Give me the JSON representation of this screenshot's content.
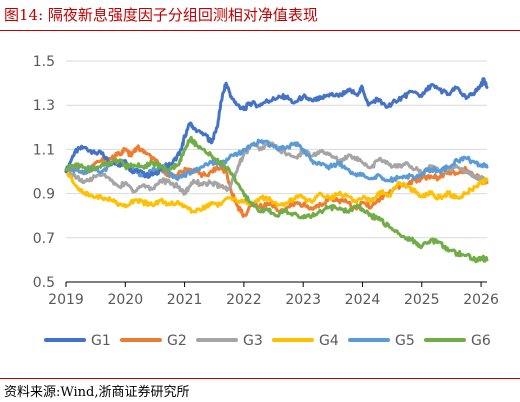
{
  "figure": {
    "title": "图14:  隔夜新息强度因子分组回测相对净值表现",
    "source": "资料来源:Wind,浙商证券研究所"
  },
  "chart_data": {
    "type": "line",
    "title": "",
    "xlabel": "",
    "ylabel": "",
    "ylim": [
      0.5,
      1.5
    ],
    "yticks": [
      0.5,
      0.7,
      0.9,
      1.1,
      1.3,
      1.5
    ],
    "ytick_labels": [
      "0.5",
      "0.7",
      "0.9",
      "1.1",
      "1.3",
      "1.5"
    ],
    "xlim": [
      2019,
      2026.1
    ],
    "xticks": [
      2019,
      2020,
      2021,
      2022,
      2023,
      2024,
      2025,
      2026
    ],
    "xtick_labels": [
      "2019",
      "2020",
      "2021",
      "2022",
      "2023",
      "2024",
      "2025",
      "2026"
    ],
    "grid": "horizontal",
    "legend": "bottom",
    "series": [
      {
        "name": "G1",
        "color": "#4472c4",
        "x": [
          2019.0,
          2019.15,
          2019.3,
          2019.45,
          2019.6,
          2019.75,
          2019.9,
          2020.0,
          2020.1,
          2020.2,
          2020.35,
          2020.5,
          2020.65,
          2020.8,
          2020.95,
          2021.0,
          2021.1,
          2021.2,
          2021.35,
          2021.45,
          2021.55,
          2021.62,
          2021.7,
          2021.8,
          2021.9,
          2022.0,
          2022.1,
          2022.25,
          2022.4,
          2022.55,
          2022.7,
          2022.85,
          2023.0,
          2023.15,
          2023.3,
          2023.45,
          2023.6,
          2023.75,
          2023.9,
          2024.0,
          2024.1,
          2024.25,
          2024.4,
          2024.55,
          2024.7,
          2024.85,
          2025.0,
          2025.15,
          2025.3,
          2025.45,
          2025.6,
          2025.75,
          2025.9,
          2026.0,
          2026.05,
          2026.1
        ],
        "values": [
          1.0,
          1.09,
          1.11,
          1.09,
          1.08,
          1.04,
          1.03,
          1.05,
          1.0,
          1.01,
          0.98,
          0.99,
          1.02,
          1.04,
          1.1,
          1.16,
          1.22,
          1.18,
          1.17,
          1.13,
          1.2,
          1.32,
          1.4,
          1.33,
          1.3,
          1.28,
          1.31,
          1.3,
          1.32,
          1.33,
          1.34,
          1.31,
          1.34,
          1.32,
          1.33,
          1.35,
          1.34,
          1.37,
          1.35,
          1.38,
          1.3,
          1.33,
          1.29,
          1.32,
          1.34,
          1.36,
          1.34,
          1.39,
          1.37,
          1.35,
          1.38,
          1.33,
          1.36,
          1.39,
          1.42,
          1.38
        ]
      },
      {
        "name": "G2",
        "color": "#ed7d31",
        "x": [
          2019.0,
          2019.15,
          2019.3,
          2019.45,
          2019.6,
          2019.75,
          2019.9,
          2020.0,
          2020.1,
          2020.2,
          2020.35,
          2020.5,
          2020.65,
          2020.8,
          2020.95,
          2021.1,
          2021.25,
          2021.4,
          2021.55,
          2021.7,
          2021.8,
          2021.9,
          2022.0,
          2022.15,
          2022.3,
          2022.45,
          2022.6,
          2022.75,
          2022.9,
          2023.0,
          2023.15,
          2023.3,
          2023.45,
          2023.6,
          2023.75,
          2023.9,
          2024.0,
          2024.15,
          2024.3,
          2024.45,
          2024.6,
          2024.75,
          2024.9,
          2025.0,
          2025.15,
          2025.3,
          2025.45,
          2025.6,
          2025.75,
          2025.9,
          2026.0,
          2026.1
        ],
        "values": [
          1.0,
          1.02,
          0.99,
          1.03,
          1.05,
          1.06,
          1.08,
          1.1,
          1.07,
          1.11,
          1.08,
          1.05,
          1.0,
          0.98,
          1.0,
          1.01,
          0.99,
          0.98,
          1.02,
          1.0,
          0.9,
          0.84,
          0.8,
          0.85,
          0.84,
          0.86,
          0.82,
          0.84,
          0.86,
          0.85,
          0.83,
          0.85,
          0.88,
          0.87,
          0.86,
          0.83,
          0.86,
          0.84,
          0.88,
          0.9,
          0.93,
          0.94,
          0.96,
          0.97,
          0.98,
          0.97,
          1.0,
          0.99,
          1.01,
          0.98,
          0.97,
          0.95
        ]
      },
      {
        "name": "G3",
        "color": "#a5a5a5",
        "x": [
          2019.0,
          2019.15,
          2019.3,
          2019.45,
          2019.6,
          2019.75,
          2019.9,
          2020.0,
          2020.15,
          2020.3,
          2020.45,
          2020.6,
          2020.75,
          2020.9,
          2021.0,
          2021.15,
          2021.3,
          2021.45,
          2021.6,
          2021.75,
          2021.9,
          2022.0,
          2022.15,
          2022.3,
          2022.45,
          2022.6,
          2022.75,
          2022.9,
          2023.0,
          2023.15,
          2023.3,
          2023.45,
          2023.6,
          2023.75,
          2023.9,
          2024.0,
          2024.15,
          2024.3,
          2024.45,
          2024.6,
          2024.75,
          2024.9,
          2025.0,
          2025.15,
          2025.3,
          2025.45,
          2025.6,
          2025.75,
          2025.9,
          2026.0,
          2026.1
        ],
        "values": [
          1.0,
          0.98,
          0.95,
          0.97,
          0.99,
          0.96,
          0.93,
          0.95,
          0.91,
          0.94,
          0.92,
          0.96,
          0.95,
          0.93,
          0.9,
          0.96,
          0.94,
          0.95,
          0.93,
          0.92,
          1.02,
          1.08,
          1.12,
          1.1,
          1.13,
          1.1,
          1.08,
          1.06,
          1.1,
          1.07,
          1.09,
          1.08,
          1.05,
          1.07,
          1.06,
          1.04,
          1.02,
          1.06,
          1.03,
          1.02,
          1.04,
          1.01,
          0.99,
          1.02,
          1.0,
          1.01,
          1.02,
          1.0,
          0.98,
          0.97,
          0.95
        ]
      },
      {
        "name": "G4",
        "color": "#ffc000",
        "x": [
          2019.0,
          2019.15,
          2019.3,
          2019.45,
          2019.6,
          2019.75,
          2019.9,
          2020.0,
          2020.15,
          2020.3,
          2020.45,
          2020.6,
          2020.75,
          2020.9,
          2021.0,
          2021.15,
          2021.3,
          2021.45,
          2021.6,
          2021.75,
          2021.9,
          2022.0,
          2022.15,
          2022.3,
          2022.45,
          2022.6,
          2022.75,
          2022.9,
          2023.0,
          2023.15,
          2023.3,
          2023.45,
          2023.6,
          2023.75,
          2023.9,
          2024.0,
          2024.15,
          2024.3,
          2024.45,
          2024.6,
          2024.75,
          2024.9,
          2025.0,
          2025.15,
          2025.3,
          2025.45,
          2025.6,
          2025.75,
          2025.9,
          2026.0,
          2026.1
        ],
        "values": [
          1.0,
          0.94,
          0.9,
          0.89,
          0.88,
          0.87,
          0.85,
          0.84,
          0.87,
          0.86,
          0.85,
          0.87,
          0.85,
          0.86,
          0.84,
          0.82,
          0.83,
          0.86,
          0.85,
          0.88,
          0.86,
          0.87,
          0.85,
          0.88,
          0.87,
          0.85,
          0.86,
          0.89,
          0.88,
          0.86,
          0.9,
          0.88,
          0.9,
          0.89,
          0.86,
          0.88,
          0.87,
          0.91,
          0.89,
          0.95,
          0.93,
          0.91,
          0.89,
          0.9,
          0.88,
          0.9,
          0.88,
          0.9,
          0.93,
          0.95,
          0.96
        ]
      },
      {
        "name": "G5",
        "color": "#5b9bd5",
        "x": [
          2019.0,
          2019.15,
          2019.3,
          2019.45,
          2019.6,
          2019.75,
          2019.9,
          2020.0,
          2020.15,
          2020.3,
          2020.45,
          2020.6,
          2020.75,
          2020.9,
          2021.0,
          2021.15,
          2021.3,
          2021.45,
          2021.6,
          2021.75,
          2021.9,
          2022.0,
          2022.15,
          2022.3,
          2022.45,
          2022.6,
          2022.75,
          2022.9,
          2023.0,
          2023.15,
          2023.3,
          2023.45,
          2023.6,
          2023.75,
          2023.9,
          2024.0,
          2024.15,
          2024.3,
          2024.45,
          2024.6,
          2024.75,
          2024.9,
          2025.0,
          2025.15,
          2025.3,
          2025.45,
          2025.6,
          2025.75,
          2025.9,
          2026.0,
          2026.1
        ],
        "values": [
          1.0,
          1.01,
          0.99,
          1.02,
          1.0,
          1.03,
          1.05,
          1.03,
          1.01,
          0.98,
          1.0,
          1.02,
          0.99,
          0.97,
          0.98,
          1.0,
          1.02,
          1.04,
          1.03,
          1.06,
          1.08,
          1.1,
          1.12,
          1.14,
          1.12,
          1.1,
          1.11,
          1.13,
          1.1,
          1.05,
          1.03,
          1.02,
          1.04,
          1.01,
          0.98,
          0.99,
          0.97,
          0.98,
          0.96,
          0.97,
          0.98,
          0.97,
          0.99,
          1.01,
          1.0,
          1.02,
          1.05,
          1.06,
          1.04,
          1.03,
          1.02
        ]
      },
      {
        "name": "G6",
        "color": "#70ad47",
        "x": [
          2019.0,
          2019.15,
          2019.3,
          2019.45,
          2019.6,
          2019.75,
          2019.9,
          2020.0,
          2020.15,
          2020.3,
          2020.45,
          2020.6,
          2020.75,
          2020.9,
          2021.0,
          2021.1,
          2021.2,
          2021.35,
          2021.5,
          2021.65,
          2021.8,
          2021.95,
          2022.1,
          2022.25,
          2022.4,
          2022.55,
          2022.7,
          2022.85,
          2023.0,
          2023.15,
          2023.3,
          2023.45,
          2023.6,
          2023.75,
          2023.9,
          2024.0,
          2024.15,
          2024.3,
          2024.45,
          2024.6,
          2024.75,
          2024.9,
          2025.0,
          2025.15,
          2025.3,
          2025.45,
          2025.6,
          2025.75,
          2025.9,
          2026.0,
          2026.1
        ],
        "values": [
          1.01,
          1.03,
          1.02,
          1.01,
          1.03,
          1.04,
          1.05,
          1.02,
          1.03,
          1.02,
          1.04,
          1.02,
          1.01,
          1.03,
          1.1,
          1.15,
          1.12,
          1.09,
          1.06,
          1.03,
          0.99,
          0.92,
          0.86,
          0.82,
          0.83,
          0.8,
          0.82,
          0.81,
          0.79,
          0.8,
          0.82,
          0.84,
          0.83,
          0.82,
          0.84,
          0.83,
          0.8,
          0.78,
          0.75,
          0.72,
          0.7,
          0.68,
          0.66,
          0.69,
          0.68,
          0.64,
          0.63,
          0.62,
          0.6,
          0.61,
          0.6
        ]
      }
    ]
  }
}
